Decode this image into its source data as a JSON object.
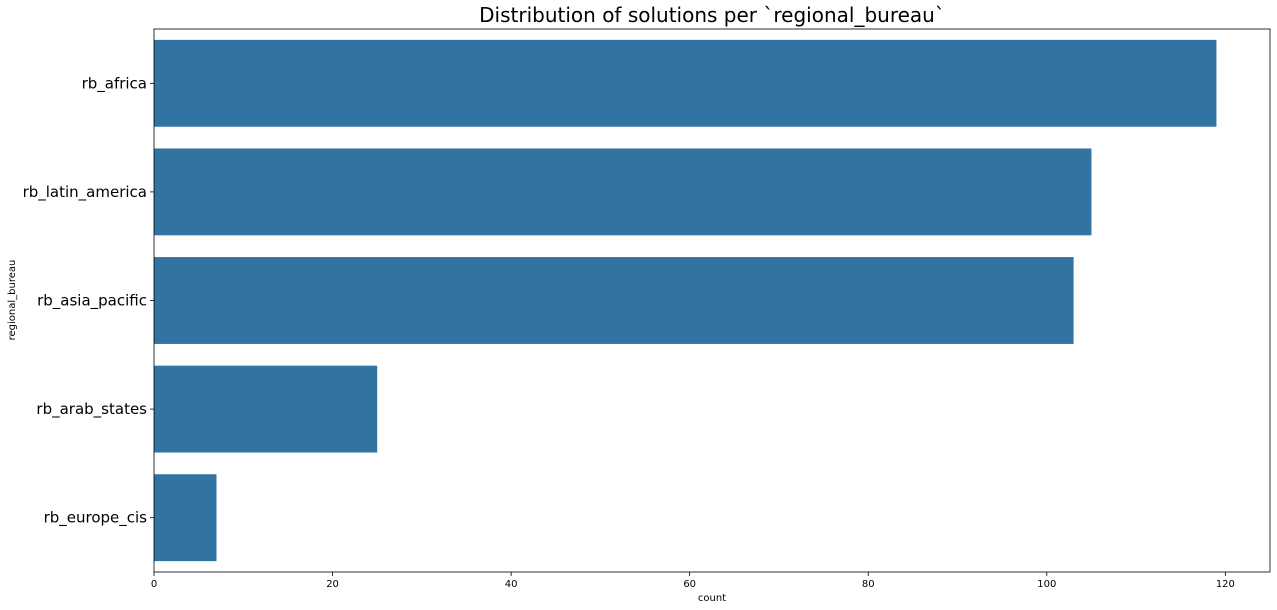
{
  "chart_data": {
    "type": "bar",
    "orientation": "horizontal",
    "title": "Distribution of solutions per `regional_bureau`",
    "xlabel": "count",
    "ylabel": "regional_bureau",
    "categories": [
      "rb_africa",
      "rb_latin_america",
      "rb_asia_pacific",
      "rb_arab_states",
      "rb_europe_cis"
    ],
    "values": [
      119,
      105,
      103,
      25,
      7
    ],
    "xlim": [
      0,
      125
    ],
    "xticks": [
      0,
      20,
      40,
      60,
      80,
      100,
      120
    ],
    "bar_color": "#3274a1",
    "grid": false,
    "legend": "none"
  }
}
